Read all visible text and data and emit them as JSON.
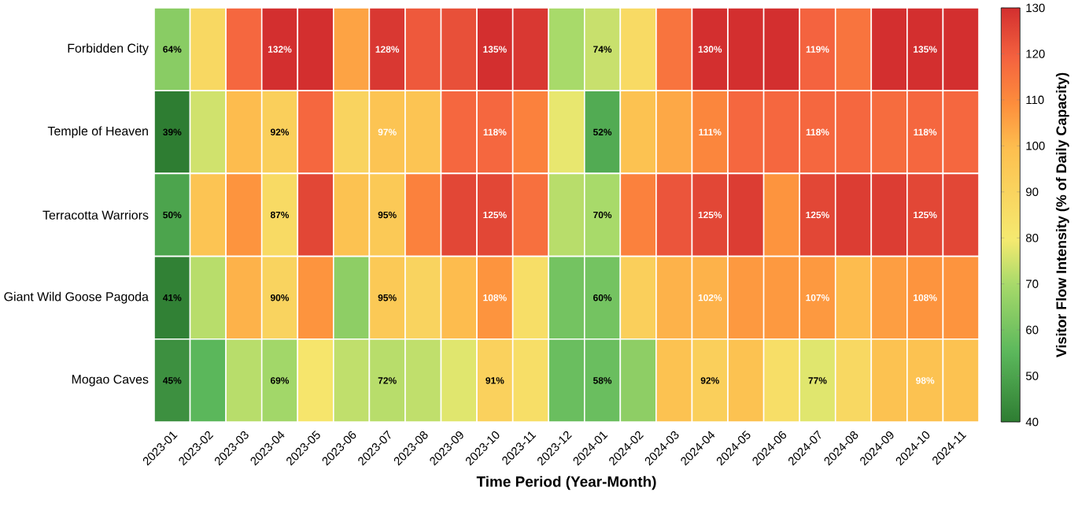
{
  "chart_data": {
    "type": "heatmap",
    "xlabel": "Time Period (Year-Month)",
    "clabel": "Visitor Flow Intensity (% of Daily Capacity)",
    "categories": [
      "2023-01",
      "2023-02",
      "2023-03",
      "2023-04",
      "2023-05",
      "2023-06",
      "2023-07",
      "2023-08",
      "2023-09",
      "2023-10",
      "2023-11",
      "2023-12",
      "2024-01",
      "2024-02",
      "2024-03",
      "2024-04",
      "2024-05",
      "2024-06",
      "2024-07",
      "2024-08",
      "2024-09",
      "2024-10",
      "2024-11"
    ],
    "y_categories": [
      "Forbidden City",
      "Temple of Heaven",
      "Terracotta Warriors",
      "Giant Wild Goose Pagoda",
      "Mogao Caves"
    ],
    "cells": [
      [
        64,
        88,
        118,
        132,
        135,
        105,
        128,
        121,
        123,
        135,
        128,
        70,
        74,
        87,
        115,
        130,
        132,
        133,
        119,
        115,
        132,
        135,
        133
      ],
      [
        39,
        75,
        100,
        92,
        118,
        90,
        97,
        97,
        118,
        118,
        112,
        78,
        52,
        98,
        104,
        111,
        118,
        118,
        118,
        118,
        117,
        118,
        118
      ],
      [
        50,
        97,
        108,
        87,
        125,
        98,
        95,
        112,
        125,
        125,
        116,
        72,
        70,
        112,
        122,
        125,
        127,
        108,
        125,
        127,
        127,
        125,
        125
      ],
      [
        41,
        72,
        102,
        90,
        108,
        65,
        95,
        90,
        100,
        108,
        85,
        60,
        60,
        92,
        102,
        102,
        107,
        107,
        107,
        100,
        106,
        108,
        108
      ],
      [
        45,
        55,
        72,
        69,
        82,
        73,
        72,
        73,
        77,
        91,
        85,
        58,
        58,
        65,
        98,
        92,
        98,
        85,
        77,
        88,
        98,
        98,
        98
      ]
    ],
    "cell_labels": [
      [
        "64%",
        null,
        null,
        "132%",
        null,
        null,
        "128%",
        null,
        null,
        "135%",
        null,
        null,
        "74%",
        null,
        null,
        "130%",
        null,
        null,
        "119%",
        null,
        null,
        "135%",
        null
      ],
      [
        "39%",
        null,
        null,
        "92%",
        null,
        null,
        "97%",
        null,
        null,
        "118%",
        null,
        null,
        "52%",
        null,
        null,
        "111%",
        null,
        null,
        "118%",
        null,
        null,
        "118%",
        null
      ],
      [
        "50%",
        null,
        null,
        "87%",
        null,
        null,
        "95%",
        null,
        null,
        "125%",
        null,
        null,
        "70%",
        null,
        null,
        "125%",
        null,
        null,
        "125%",
        null,
        null,
        "125%",
        null
      ],
      [
        "41%",
        null,
        null,
        "90%",
        null,
        null,
        "95%",
        null,
        null,
        "108%",
        null,
        null,
        "60%",
        null,
        null,
        "102%",
        null,
        null,
        "107%",
        null,
        null,
        "108%",
        null
      ],
      [
        "45%",
        null,
        null,
        "69%",
        null,
        null,
        "72%",
        null,
        null,
        "91%",
        null,
        null,
        "58%",
        null,
        null,
        "92%",
        null,
        null,
        "77%",
        null,
        null,
        "98%",
        null
      ]
    ],
    "clim": [
      40,
      130
    ],
    "cticks": [
      40,
      50,
      60,
      70,
      80,
      90,
      100,
      110,
      120,
      130
    ]
  }
}
